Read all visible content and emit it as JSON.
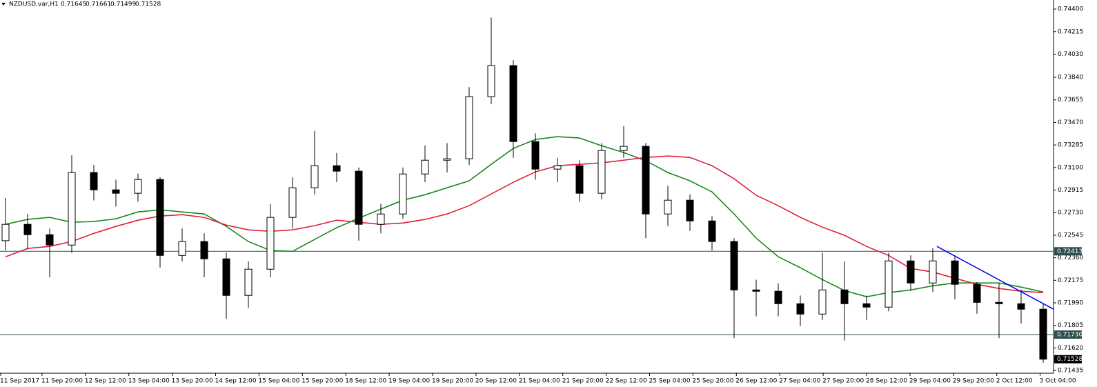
{
  "chart_data": {
    "type": "candlestick",
    "title": "NZDUSD.var,H1",
    "header_values": [
      0.71645,
      0.71661,
      0.71499,
      0.71528
    ],
    "ylim": [
      0.71413,
      0.74474
    ],
    "yticks": [
      {
        "value": 0.744,
        "label": "0.74400"
      },
      {
        "value": 0.74215,
        "label": "0.74215"
      },
      {
        "value": 0.7403,
        "label": "0.74030"
      },
      {
        "value": 0.7384,
        "label": "0.73840"
      },
      {
        "value": 0.73655,
        "label": "0.73655"
      },
      {
        "value": 0.7347,
        "label": "0.73470"
      },
      {
        "value": 0.73285,
        "label": "0.73285"
      },
      {
        "value": 0.731,
        "label": "0.73100"
      },
      {
        "value": 0.72915,
        "label": "0.72915"
      },
      {
        "value": 0.7273,
        "label": "0.72730"
      },
      {
        "value": 0.72545,
        "label": "0.72545"
      },
      {
        "value": 0.7236,
        "label": "0.72360"
      },
      {
        "value": 0.72175,
        "label": "0.72175"
      },
      {
        "value": 0.7199,
        "label": "0.71990"
      },
      {
        "value": 0.71805,
        "label": "0.71805"
      },
      {
        "value": 0.7162,
        "label": "0.71620"
      },
      {
        "value": 0.71435,
        "label": "0.71435"
      }
    ],
    "x_labels": [
      "11 Sep 2017",
      "11 Sep 20:00",
      "12 Sep 12:00",
      "13 Sep 04:00",
      "13 Sep 20:00",
      "14 Sep 12:00",
      "15 Sep 04:00",
      "15 Sep 20:00",
      "18 Sep 12:00",
      "19 Sep 04:00",
      "19 Sep 20:00",
      "20 Sep 12:00",
      "21 Sep 04:00",
      "21 Sep 20:00",
      "22 Sep 12:00",
      "25 Sep 04:00",
      "25 Sep 20:00",
      "26 Sep 12:00",
      "27 Sep 04:00",
      "27 Sep 20:00",
      "28 Sep 12:00",
      "29 Sep 04:00",
      "29 Sep 20:00",
      "2 Oct 12:00",
      "3 Oct 04:00"
    ],
    "open": [
      0.725,
      0.72634,
      0.72549,
      0.72464,
      0.73059,
      0.72917,
      0.72889,
      0.73002,
      0.72379,
      0.72493,
      0.72351,
      0.72051,
      0.72266,
      0.72691,
      0.72934,
      0.73115,
      0.7307,
      0.72634,
      0.72719,
      0.73047,
      0.7316,
      0.73172,
      0.73681,
      0.73936,
      0.73313,
      0.73087,
      0.73115,
      0.72889,
      0.7324,
      0.73274,
      0.72719,
      0.72832,
      0.72662,
      0.72493,
      0.72096,
      0.72085,
      0.71983,
      0.71898,
      0.72096,
      0.71983,
      0.71955,
      0.72334,
      0.72153,
      0.72334,
      0.72142,
      0.71994,
      0.71983,
      0.71938
    ],
    "high": [
      0.7285,
      0.7272,
      0.726,
      0.732,
      0.7312,
      0.73,
      0.7305,
      0.7302,
      0.726,
      0.7256,
      0.724,
      0.7233,
      0.728,
      0.7302,
      0.734,
      0.7322,
      0.731,
      0.728,
      0.731,
      0.7328,
      0.733,
      0.7376,
      0.7433,
      0.7398,
      0.7338,
      0.7318,
      0.7316,
      0.733,
      0.7344,
      0.733,
      0.7295,
      0.7288,
      0.727,
      0.7252,
      0.7218,
      0.7215,
      0.7205,
      0.724,
      0.7233,
      0.7205,
      0.724,
      0.7238,
      0.7244,
      0.7238,
      0.7216,
      0.7215,
      0.721,
      0.7198
    ],
    "low": [
      0.7242,
      0.7243,
      0.722,
      0.724,
      0.7283,
      0.7278,
      0.7282,
      0.7228,
      0.7233,
      0.722,
      0.7186,
      0.7195,
      0.722,
      0.726,
      0.7288,
      0.7298,
      0.725,
      0.7256,
      0.7268,
      0.7298,
      0.7306,
      0.7312,
      0.7362,
      0.7318,
      0.73,
      0.7298,
      0.7282,
      0.7284,
      0.7318,
      0.7252,
      0.7262,
      0.7258,
      0.7242,
      0.717,
      0.7188,
      0.7188,
      0.718,
      0.7185,
      0.7168,
      0.7185,
      0.7192,
      0.7209,
      0.7208,
      0.7202,
      0.719,
      0.717,
      0.7182,
      0.71499
    ],
    "close": [
      0.72634,
      0.72549,
      0.72464,
      0.73059,
      0.72917,
      0.72889,
      0.73002,
      0.72379,
      0.72493,
      0.72351,
      0.72051,
      0.72266,
      0.72691,
      0.72934,
      0.73115,
      0.7307,
      0.72634,
      0.72719,
      0.73047,
      0.7316,
      0.73172,
      0.73681,
      0.73936,
      0.73313,
      0.73087,
      0.73115,
      0.72889,
      0.7324,
      0.73274,
      0.72719,
      0.72832,
      0.72662,
      0.72493,
      0.72096,
      0.72085,
      0.71983,
      0.71898,
      0.72096,
      0.71983,
      0.71955,
      0.72334,
      0.72153,
      0.72334,
      0.72142,
      0.71994,
      0.71983,
      0.71938,
      0.71528
    ],
    "series": [
      {
        "color": "#1a8a1a",
        "values": [
          0.72634,
          0.72674,
          0.72691,
          0.72651,
          0.72657,
          0.72679,
          0.72736,
          0.72753,
          0.72736,
          0.72719,
          0.72617,
          0.72493,
          0.72419,
          0.72413,
          0.7251,
          0.72606,
          0.72685,
          0.72759,
          0.72832,
          0.72877,
          0.72934,
          0.72991,
          0.73126,
          0.73257,
          0.7333,
          0.73353,
          0.73342,
          0.73279,
          0.73223,
          0.73155,
          0.73059,
          0.72991,
          0.729,
          0.72719,
          0.72521,
          0.72368,
          0.72278,
          0.72181,
          0.72091,
          0.7204,
          0.72074,
          0.72096,
          0.7213,
          0.72153,
          0.72153,
          0.72153,
          0.72119,
          0.72079
        ]
      },
      {
        "color": "#e0203c",
        "values": [
          0.72368,
          0.72436,
          0.72453,
          0.72493,
          0.7256,
          0.72617,
          0.72668,
          0.72702,
          0.72713,
          0.72691,
          0.72628,
          0.72589,
          0.72577,
          0.72589,
          0.72623,
          0.72668,
          0.72651,
          0.72634,
          0.72645,
          0.72674,
          0.72719,
          0.72787,
          0.72883,
          0.72979,
          0.73064,
          0.73115,
          0.73126,
          0.73138,
          0.7316,
          0.73183,
          0.73194,
          0.73183,
          0.73115,
          0.73008,
          0.72872,
          0.72787,
          0.72691,
          0.72611,
          0.72544,
          0.72453,
          0.72379,
          0.72272,
          0.72243,
          0.72192,
          0.72142,
          0.72108,
          0.72085,
          0.72074
        ]
      }
    ],
    "levels": [
      {
        "value": 0.72413,
        "label": "0.72413"
      },
      {
        "value": 0.7173,
        "label": "0.71730"
      }
    ],
    "level_color": "#2f4f4f",
    "current_price": 0.71528,
    "trendline": {
      "color": "#0000ff",
      "start": 0.72453,
      "end": 0.71938
    }
  }
}
